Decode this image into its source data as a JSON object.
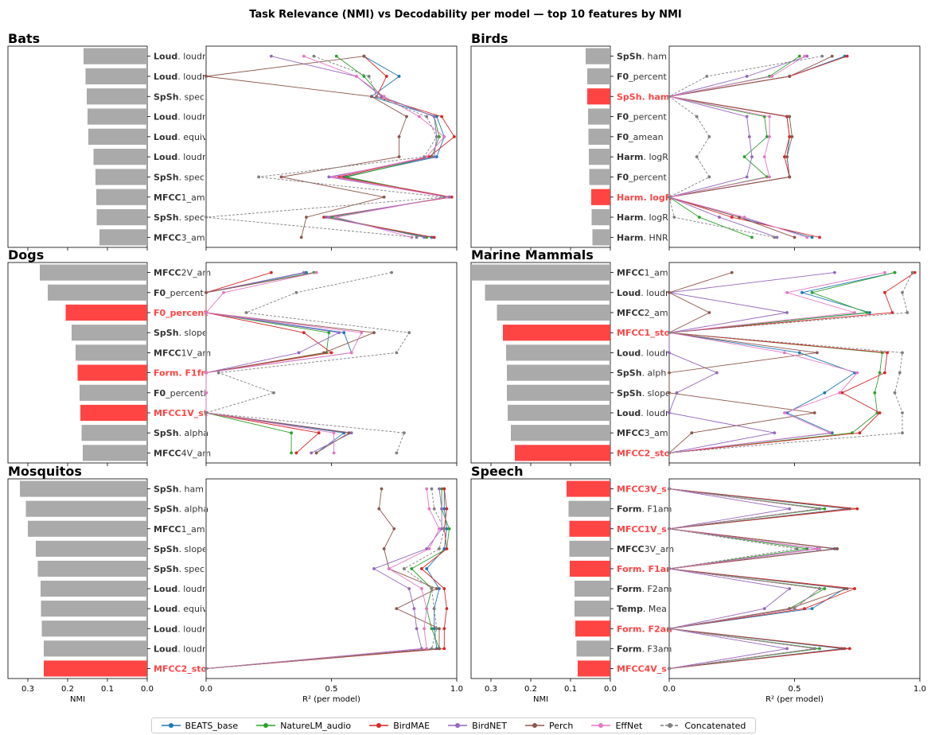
{
  "chart_data": {
    "type": "line",
    "title": "Task Relevance (NMI) vs Decodability per model  —  top 10 features by NMI",
    "nmi_axis": {
      "label": "NMI",
      "ticks": [
        "0.3",
        "0.2",
        "0.1",
        "0.0"
      ],
      "range": [
        0.35,
        0.0
      ]
    },
    "r2_axis": {
      "label": "R²  (per model)",
      "ticks": [
        "0.0",
        "0.5",
        "1.0"
      ],
      "range": [
        0.0,
        1.0
      ]
    },
    "models": [
      {
        "name": "BEATS_base",
        "color": "#1f77b4",
        "dashed": false
      },
      {
        "name": "NatureLM_audio",
        "color": "#2ca02c",
        "dashed": false
      },
      {
        "name": "BirdMAE",
        "color": "#d62728",
        "dashed": false
      },
      {
        "name": "BirdNET",
        "color": "#9467bd",
        "dashed": false
      },
      {
        "name": "Perch",
        "color": "#8c564b",
        "dashed": false
      },
      {
        "name": "EffNet",
        "color": "#e377c2",
        "dashed": false
      },
      {
        "name": "Concatenated",
        "color": "#7f7f7f",
        "dashed": true
      }
    ],
    "highlight_color": "#ff4444",
    "bar_color": "#aaaaaa",
    "panels": [
      {
        "name": "Bats",
        "features": [
          {
            "group": "Loud",
            "rest": ". loudn",
            "nmi": 0.16,
            "flag": false
          },
          {
            "group": "Loud",
            "rest": ". loudn",
            "nmi": 0.155,
            "flag": false
          },
          {
            "group": "SpSh",
            "rest": ". spec",
            "nmi": 0.152,
            "flag": false
          },
          {
            "group": "Loud",
            "rest": ". loudn",
            "nmi": 0.15,
            "flag": false
          },
          {
            "group": "Loud",
            "rest": ". equiv",
            "nmi": 0.148,
            "flag": false
          },
          {
            "group": "Loud",
            "rest": ". loudn",
            "nmi": 0.135,
            "flag": false
          },
          {
            "group": "SpSh",
            "rest": ". spec",
            "nmi": 0.13,
            "flag": false
          },
          {
            "group": "MFCC",
            "rest": "1_am",
            "nmi": 0.128,
            "flag": false
          },
          {
            "group": "SpSh",
            "rest": ". spec",
            "nmi": 0.127,
            "flag": false
          },
          {
            "group": "MFCC",
            "rest": "3_am",
            "nmi": 0.12,
            "flag": false
          }
        ],
        "r2": [
          [
            0.63,
            0.77,
            0.66,
            0.92,
            0.95,
            0.92,
            0.55,
            0.97,
            0.48,
            0.9
          ],
          [
            0.52,
            0.63,
            0.7,
            0.91,
            0.93,
            0.9,
            0.56,
            0.96,
            0.5,
            0.88
          ],
          [
            0.63,
            0.72,
            0.68,
            0.94,
            0.99,
            0.89,
            0.53,
            0.98,
            0.47,
            0.91
          ],
          [
            0.26,
            0.6,
            0.7,
            0.91,
            0.92,
            0.91,
            0.49,
            0.97,
            0.48,
            0.87
          ],
          [
            0.63,
            0.0,
            0.66,
            0.8,
            0.77,
            0.77,
            0.3,
            0.71,
            0.4,
            0.38
          ],
          [
            0.39,
            0.6,
            0.71,
            0.85,
            0.95,
            0.88,
            0.51,
            0.96,
            0.52,
            0.82
          ],
          [
            0.43,
            0.65,
            0.68,
            0.88,
            0.92,
            0.87,
            0.21,
            0.95,
            0.0,
            0.84
          ]
        ]
      },
      {
        "name": "Birds",
        "features": [
          {
            "group": "SpSh",
            "rest": ". ham",
            "nmi": 0.062,
            "flag": false
          },
          {
            "group": "F0",
            "rest": "_percent",
            "nmi": 0.058,
            "flag": false
          },
          {
            "group": "SpSh",
            "rest": ". ham",
            "nmi": 0.058,
            "flag": true
          },
          {
            "group": "F0",
            "rest": "_percent",
            "nmi": 0.056,
            "flag": false
          },
          {
            "group": "F0",
            "rest": "_amean",
            "nmi": 0.055,
            "flag": false
          },
          {
            "group": "Harm",
            "rest": ". logR",
            "nmi": 0.054,
            "flag": false
          },
          {
            "group": "F0",
            "rest": "_percent",
            "nmi": 0.053,
            "flag": false
          },
          {
            "group": "Harm",
            "rest": ". logR",
            "nmi": 0.048,
            "flag": true
          },
          {
            "group": "Harm",
            "rest": ". logR",
            "nmi": 0.047,
            "flag": false
          },
          {
            "group": "Harm",
            "rest": ". HNR",
            "nmi": 0.045,
            "flag": false
          }
        ],
        "r2": [
          [
            0.7,
            0.48,
            0.0,
            0.47,
            0.48,
            0.47,
            0.48,
            0.0,
            0.28,
            0.57
          ],
          [
            0.52,
            0.4,
            0.0,
            0.38,
            0.39,
            0.3,
            0.39,
            0.0,
            0.12,
            0.33
          ],
          [
            0.71,
            0.48,
            0.0,
            0.47,
            0.48,
            0.46,
            0.48,
            0.0,
            0.25,
            0.6
          ],
          [
            0.55,
            0.31,
            0.0,
            0.31,
            0.32,
            0.33,
            0.31,
            0.0,
            0.2,
            0.43
          ],
          [
            0.65,
            0.48,
            0.0,
            0.48,
            0.49,
            0.47,
            0.48,
            0.0,
            0.28,
            0.5
          ],
          [
            0.54,
            0.41,
            0.0,
            0.4,
            0.4,
            0.38,
            0.4,
            0.0,
            0.3,
            0.55
          ],
          [
            0.61,
            0.15,
            0.0,
            0.11,
            0.16,
            0.11,
            0.16,
            0.0,
            0.02,
            0.42
          ]
        ]
      },
      {
        "name": "Dogs",
        "features": [
          {
            "group": "MFCC",
            "rest": "2V_am",
            "nmi": 0.27,
            "flag": false
          },
          {
            "group": "F0",
            "rest": "_percent",
            "nmi": 0.25,
            "flag": false
          },
          {
            "group": "F0",
            "rest": "_percent",
            "nmi": 0.205,
            "flag": true
          },
          {
            "group": "SpSh",
            "rest": ". slope",
            "nmi": 0.19,
            "flag": false
          },
          {
            "group": "MFCC",
            "rest": "1V_am",
            "nmi": 0.18,
            "flag": false
          },
          {
            "group": "Form",
            "rest": ". F1fr",
            "nmi": 0.175,
            "flag": true
          },
          {
            "group": "F0",
            "rest": "_percenti",
            "nmi": 0.17,
            "flag": false
          },
          {
            "group": "MFCC",
            "rest": "1V_st",
            "nmi": 0.168,
            "flag": true
          },
          {
            "group": "SpSh",
            "rest": ". alpha",
            "nmi": 0.165,
            "flag": false
          },
          {
            "group": "MFCC",
            "rest": "4V_am",
            "nmi": 0.162,
            "flag": false
          }
        ],
        "r2": [
          [
            0.4,
            0.0,
            0.0,
            0.55,
            0.58,
            0.0,
            0.0,
            0.0,
            0.55,
            0.44
          ],
          [
            0.43,
            0.0,
            0.0,
            0.49,
            0.48,
            0.0,
            0.0,
            0.0,
            0.34,
            0.34
          ],
          [
            0.26,
            0.0,
            0.0,
            0.39,
            0.5,
            0.0,
            0.0,
            0.0,
            0.45,
            0.36
          ],
          [
            0.39,
            0.0,
            0.0,
            0.53,
            0.37,
            0.0,
            0.0,
            0.0,
            0.58,
            0.42
          ],
          [
            0.44,
            0.0,
            0.0,
            0.67,
            0.47,
            0.0,
            0.0,
            0.0,
            0.57,
            0.44
          ],
          [
            0.44,
            0.07,
            0.0,
            0.62,
            0.58,
            0.0,
            0.0,
            0.0,
            0.51,
            0.51
          ],
          [
            0.74,
            0.36,
            0.16,
            0.81,
            0.76,
            0.05,
            0.27,
            0.0,
            0.79,
            0.76
          ]
        ]
      },
      {
        "name": "Marine Mammals",
        "features": [
          {
            "group": "MFCC",
            "rest": "1_am",
            "nmi": 0.35,
            "flag": false
          },
          {
            "group": "Loud",
            "rest": ". loudn",
            "nmi": 0.315,
            "flag": false
          },
          {
            "group": "MFCC",
            "rest": "2_am",
            "nmi": 0.285,
            "flag": false
          },
          {
            "group": "MFCC",
            "rest": "1_sto",
            "nmi": 0.27,
            "flag": true
          },
          {
            "group": "Loud",
            "rest": ". loudn",
            "nmi": 0.262,
            "flag": false
          },
          {
            "group": "SpSh",
            "rest": ". alph",
            "nmi": 0.26,
            "flag": false
          },
          {
            "group": "SpSh",
            "rest": ". slope",
            "nmi": 0.26,
            "flag": false
          },
          {
            "group": "Loud",
            "rest": ". loudn",
            "nmi": 0.258,
            "flag": false
          },
          {
            "group": "MFCC",
            "rest": "3_am",
            "nmi": 0.25,
            "flag": false
          },
          {
            "group": "MFCC",
            "rest": "2_sto",
            "nmi": 0.24,
            "flag": true
          }
        ],
        "r2": [
          [
            0.9,
            0.53,
            0.8,
            0.0,
            0.52,
            0.74,
            0.62,
            0.47,
            0.65,
            0.0
          ],
          [
            0.9,
            0.57,
            0.79,
            0.0,
            0.85,
            0.84,
            0.82,
            0.83,
            0.73,
            0.0
          ],
          [
            0.98,
            0.86,
            0.89,
            0.0,
            0.87,
            0.86,
            0.69,
            0.84,
            0.76,
            0.0
          ],
          [
            0.66,
            0.0,
            0.47,
            0.0,
            0.0,
            0.19,
            0.03,
            0.0,
            0.42,
            0.0
          ],
          [
            0.25,
            0.0,
            0.16,
            0.0,
            0.59,
            0.0,
            0.0,
            0.58,
            0.09,
            0.0
          ],
          [
            0.86,
            0.47,
            0.74,
            0.0,
            0.46,
            0.75,
            0.68,
            0.46,
            0.64,
            0.0
          ],
          [
            0.97,
            0.93,
            0.95,
            0.0,
            0.93,
            0.92,
            0.9,
            0.93,
            0.93,
            0.0
          ]
        ]
      },
      {
        "name": "Mosquitos",
        "features": [
          {
            "group": "SpSh",
            "rest": ". ham",
            "nmi": 0.32,
            "flag": false
          },
          {
            "group": "SpSh",
            "rest": ". alpha",
            "nmi": 0.305,
            "flag": false
          },
          {
            "group": "MFCC",
            "rest": "1_am",
            "nmi": 0.3,
            "flag": false
          },
          {
            "group": "SpSh",
            "rest": ". slope",
            "nmi": 0.28,
            "flag": false
          },
          {
            "group": "SpSh",
            "rest": ". spec",
            "nmi": 0.275,
            "flag": false
          },
          {
            "group": "Loud",
            "rest": ". loudn",
            "nmi": 0.268,
            "flag": false
          },
          {
            "group": "Loud",
            "rest": ". equiv",
            "nmi": 0.267,
            "flag": false
          },
          {
            "group": "Loud",
            "rest": ". loudn",
            "nmi": 0.265,
            "flag": false
          },
          {
            "group": "Loud",
            "rest": ". loudn",
            "nmi": 0.26,
            "flag": false
          },
          {
            "group": "MFCC",
            "rest": "2_sto",
            "nmi": 0.26,
            "flag": true
          }
        ],
        "r2": [
          [
            0.95,
            0.95,
            0.96,
            0.95,
            0.88,
            0.93,
            0.91,
            0.91,
            0.92,
            0.0
          ],
          [
            0.94,
            0.94,
            0.97,
            0.96,
            0.82,
            0.9,
            0.88,
            0.9,
            0.93,
            0.0
          ],
          [
            0.95,
            0.96,
            0.95,
            0.96,
            0.86,
            0.95,
            0.96,
            0.95,
            0.95,
            0.0
          ],
          [
            0.93,
            0.94,
            0.94,
            0.88,
            0.67,
            0.81,
            0.83,
            0.84,
            0.86,
            0.0
          ],
          [
            0.7,
            0.69,
            0.75,
            0.71,
            0.73,
            0.92,
            0.76,
            0.93,
            0.93,
            0.0
          ],
          [
            0.88,
            0.89,
            0.93,
            0.89,
            0.73,
            0.86,
            0.88,
            0.87,
            0.88,
            0.0
          ],
          [
            0.9,
            0.91,
            0.95,
            0.93,
            0.79,
            0.9,
            0.91,
            0.92,
            0.9,
            0.0
          ]
        ]
      },
      {
        "name": "Speech",
        "features": [
          {
            "group": "MFCC",
            "rest": "3V_s",
            "nmi": 0.11,
            "flag": true
          },
          {
            "group": "Form",
            "rest": ". F1am",
            "nmi": 0.105,
            "flag": false
          },
          {
            "group": "MFCC",
            "rest": "1V_s",
            "nmi": 0.103,
            "flag": true
          },
          {
            "group": "MFCC",
            "rest": "3V_am",
            "nmi": 0.103,
            "flag": false
          },
          {
            "group": "Form",
            "rest": ". F1ar",
            "nmi": 0.102,
            "flag": true
          },
          {
            "group": "Form",
            "rest": ". F2am",
            "nmi": 0.09,
            "flag": false
          },
          {
            "group": "Temp",
            "rest": ". Mea",
            "nmi": 0.09,
            "flag": false
          },
          {
            "group": "Form",
            "rest": ". F2an",
            "nmi": 0.088,
            "flag": true
          },
          {
            "group": "Form",
            "rest": ". F3am",
            "nmi": 0.085,
            "flag": false
          },
          {
            "group": "MFCC",
            "rest": "4V_s",
            "nmi": 0.082,
            "flag": true
          }
        ],
        "r2": [
          [
            0.0,
            0.71,
            0.0,
            0.66,
            0.0,
            0.7,
            0.57,
            0.0,
            0.69,
            0.0
          ],
          [
            0.0,
            0.62,
            0.0,
            0.55,
            0.0,
            0.62,
            0.48,
            0.0,
            0.6,
            0.0
          ],
          [
            0.0,
            0.75,
            0.0,
            0.67,
            0.0,
            0.74,
            0.54,
            0.0,
            0.72,
            0.0
          ],
          [
            0.0,
            0.48,
            0.0,
            0.59,
            0.0,
            0.48,
            0.38,
            0.0,
            0.47,
            0.0
          ],
          [
            0.0,
            0.72,
            0.0,
            0.67,
            0.0,
            0.71,
            0.48,
            0.0,
            0.7,
            0.0
          ],
          [
            0.0,
            0.6,
            0.0,
            0.6,
            0.0,
            0.6,
            0.5,
            0.0,
            0.58,
            0.0
          ],
          [
            0.0,
            0.6,
            0.0,
            0.51,
            0.0,
            0.6,
            0.5,
            0.0,
            0.58,
            0.0
          ]
        ]
      }
    ]
  }
}
